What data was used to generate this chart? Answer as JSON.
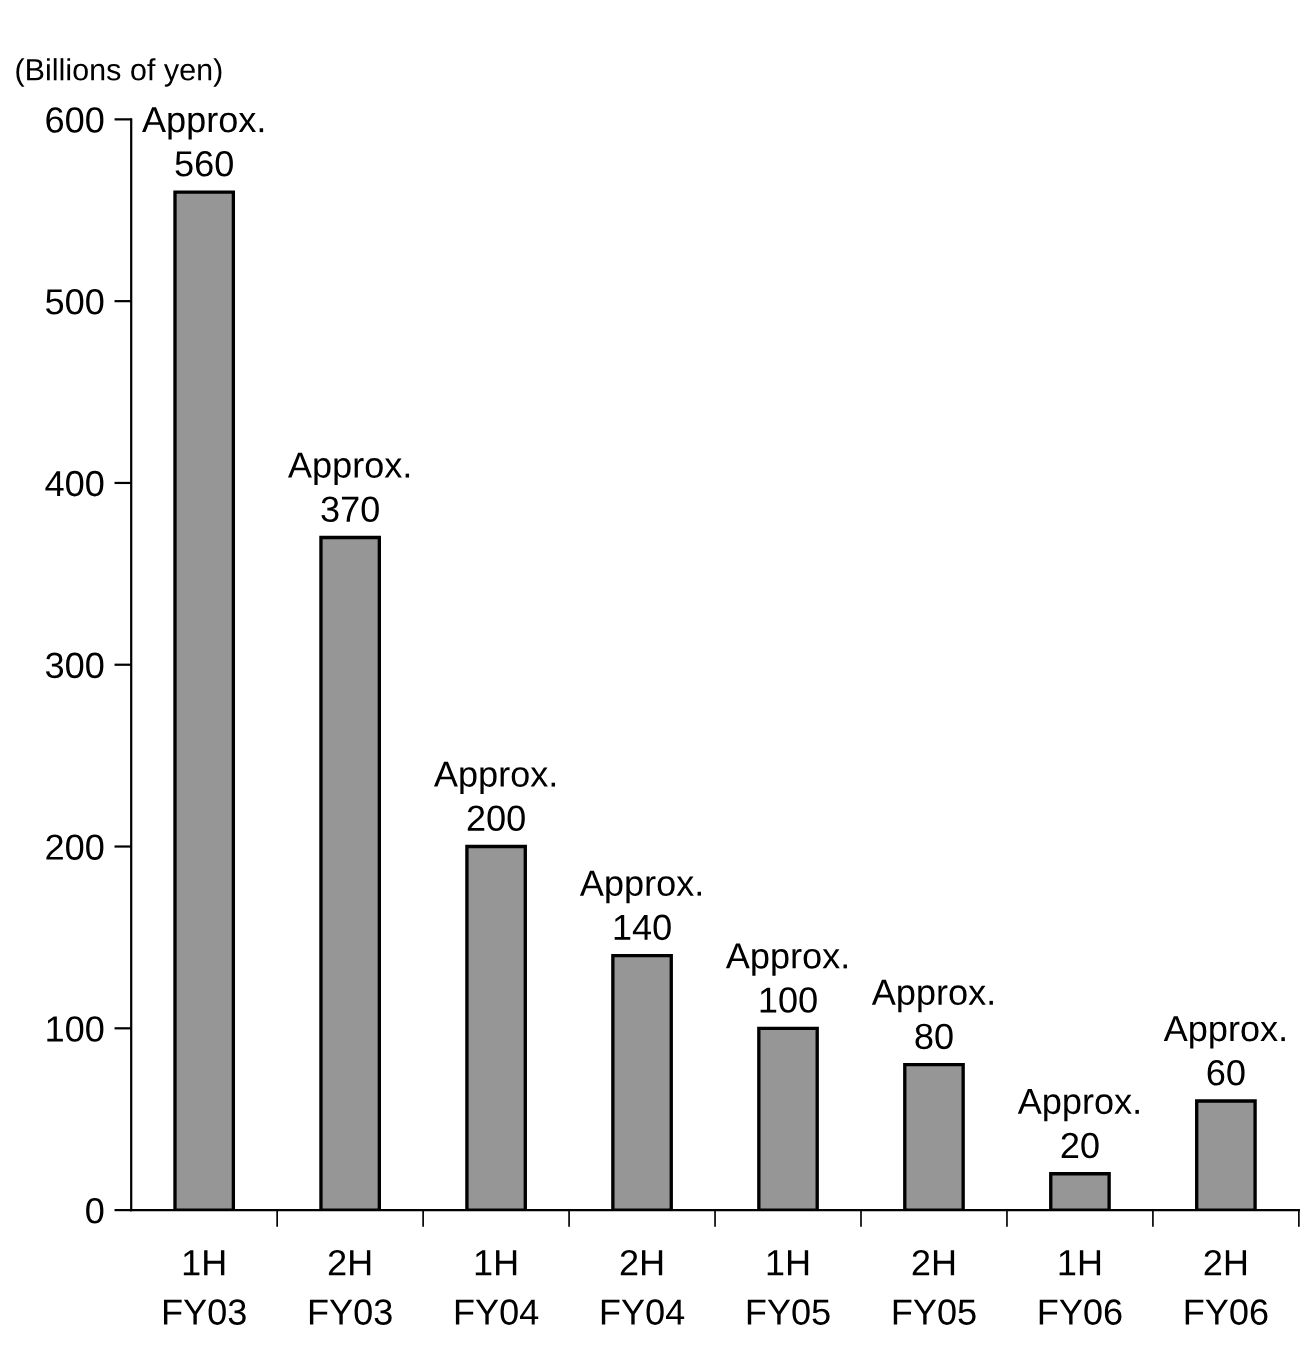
{
  "chart_data": {
    "type": "bar",
    "ylabel": "(Billions of yen)",
    "categories": [
      "1H\nFY03",
      "2H\nFY03",
      "1H\nFY04",
      "2H\nFY04",
      "1H\nFY05",
      "2H\nFY05",
      "1H\nFY06",
      "2H\nFY06"
    ],
    "values": [
      560,
      370,
      200,
      140,
      100,
      80,
      20,
      60
    ],
    "value_labels": [
      "Approx.\n560",
      "Approx.\n370",
      "Approx.\n200",
      "Approx.\n140",
      "Approx.\n100",
      "Approx.\n80",
      "Approx.\n20",
      "Approx.\n60"
    ],
    "color": "#969696",
    "ylim": [
      0,
      600
    ],
    "yticks": [
      0,
      100,
      200,
      300,
      400,
      500,
      600
    ],
    "grid": false,
    "legend": false
  }
}
